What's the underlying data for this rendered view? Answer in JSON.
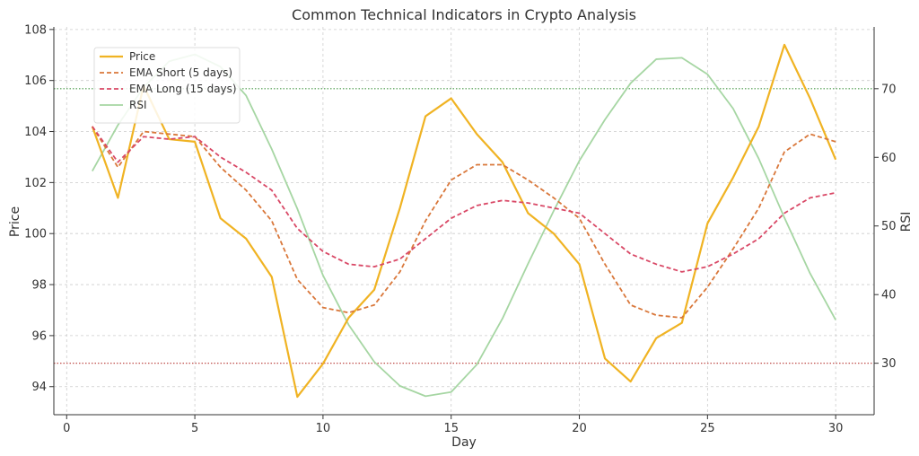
{
  "chart_data": {
    "type": "line",
    "title": "Common Technical Indicators in Crypto Analysis",
    "xlabel": "Day",
    "ylabel": "Price",
    "y2label": "RSI",
    "xlim": [
      -0.5,
      31.5
    ],
    "ylim": [
      92.9,
      108.1
    ],
    "y2lim": [
      22.5,
      79.0
    ],
    "x_ticks": [
      0,
      5,
      10,
      15,
      20,
      25,
      30
    ],
    "y_ticks": [
      94,
      96,
      98,
      100,
      102,
      104,
      106,
      108
    ],
    "y2_ticks": [
      30,
      40,
      50,
      60,
      70
    ],
    "x_tick_labels": [
      "0",
      "5",
      "10",
      "15",
      "20",
      "25",
      "30"
    ],
    "y_tick_labels": [
      "94",
      "96",
      "98",
      "100",
      "102",
      "104",
      "106",
      "108"
    ],
    "y2_tick_labels": [
      "30",
      "40",
      "50",
      "60",
      "70"
    ],
    "grid": true,
    "legend_position": "upper-left",
    "x": [
      1,
      2,
      3,
      4,
      5,
      6,
      7,
      8,
      9,
      10,
      11,
      12,
      13,
      14,
      15,
      16,
      17,
      18,
      19,
      20,
      21,
      22,
      23,
      24,
      25,
      26,
      27,
      28,
      29,
      30
    ],
    "series": [
      {
        "name": "Price",
        "axis": "left",
        "color": "#f0b323",
        "style": "solid",
        "width": 2.2,
        "values": [
          104.2,
          101.4,
          105.8,
          103.7,
          103.6,
          100.6,
          99.8,
          98.3,
          93.6,
          94.9,
          96.7,
          97.8,
          101.0,
          104.6,
          105.3,
          103.9,
          102.8,
          100.8,
          100.0,
          98.8,
          95.1,
          94.2,
          95.9,
          96.5,
          100.4,
          102.2,
          104.2,
          107.4,
          105.3,
          102.9
        ]
      },
      {
        "name": "EMA Short (5 days)",
        "axis": "left",
        "color": "#d9773a",
        "style": "dashed",
        "width": 1.8,
        "values": [
          104.2,
          102.6,
          104.0,
          103.9,
          103.8,
          102.6,
          101.7,
          100.5,
          98.2,
          97.1,
          96.9,
          97.2,
          98.5,
          100.5,
          102.1,
          102.7,
          102.7,
          102.1,
          101.4,
          100.6,
          98.8,
          97.2,
          96.8,
          96.7,
          97.9,
          99.4,
          101.0,
          103.2,
          103.9,
          103.6
        ]
      },
      {
        "name": "EMA Long (15 days)",
        "axis": "left",
        "color": "#d94866",
        "style": "dashed",
        "width": 1.8,
        "values": [
          104.2,
          102.8,
          103.8,
          103.7,
          103.8,
          103.0,
          102.4,
          101.7,
          100.2,
          99.3,
          98.8,
          98.7,
          99.0,
          99.8,
          100.6,
          101.1,
          101.3,
          101.2,
          101.0,
          100.8,
          100.0,
          99.2,
          98.8,
          98.5,
          98.7,
          99.2,
          99.8,
          100.8,
          101.4,
          101.6
        ]
      },
      {
        "name": "RSI",
        "axis": "right",
        "color": "#a6d6a3",
        "style": "solid",
        "width": 1.8,
        "values": [
          58.0,
          64.7,
          70.2,
          74.0,
          75.0,
          73.2,
          69.0,
          61.2,
          52.5,
          42.8,
          35.6,
          30.2,
          26.7,
          25.2,
          25.8,
          29.8,
          36.5,
          44.5,
          52.2,
          59.5,
          65.5,
          70.8,
          74.3,
          74.5,
          72.1,
          67.1,
          59.8,
          51.2,
          43.1,
          36.3
        ]
      }
    ],
    "reference_lines": [
      {
        "axis": "right",
        "value": 70,
        "color": "#4a9a4a"
      },
      {
        "axis": "right",
        "value": 30,
        "color": "#c0504d"
      }
    ]
  }
}
